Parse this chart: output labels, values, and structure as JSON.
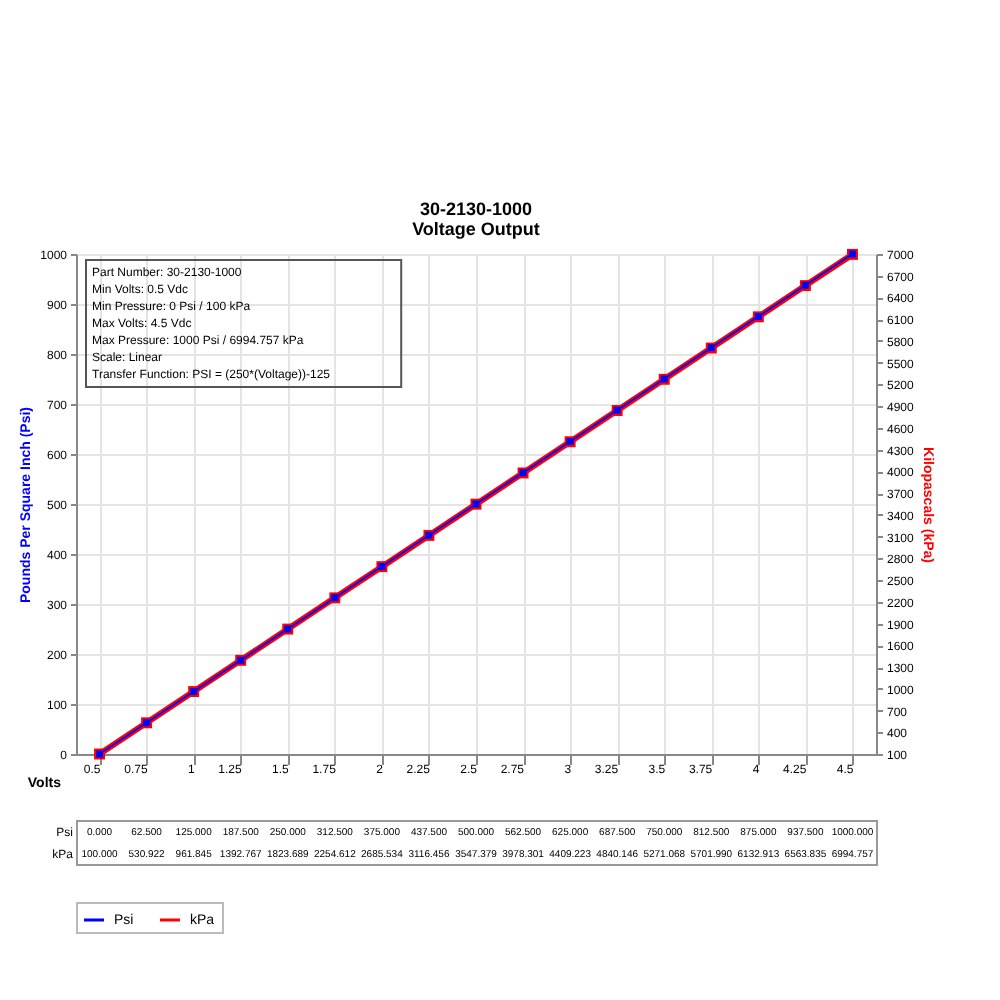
{
  "chart_data": {
    "type": "line",
    "title": "30-2130-1000",
    "subtitle": "Voltage Output",
    "xlabel": "Volts",
    "ylabel": "Pounds Per Square Inch (Psi)",
    "y2label": "Kilopascals (kPa)",
    "annotations": [
      "Part Number: 30-2130-1000",
      "Min Volts: 0.5 Vdc",
      "Min Pressure: 0 Psi / 100 kPa",
      "Max Volts: 4.5 Vdc",
      "Max Pressure: 1000 Psi / 6994.757 kPa",
      "Scale: Linear",
      "Transfer Function: PSI = (250*(Voltage))-125"
    ],
    "categories": [
      "0.5",
      "0.75",
      "1",
      "1.25",
      "1.5",
      "1.75",
      "2",
      "2.25",
      "2.5",
      "2.75",
      "3",
      "3.25",
      "3.5",
      "3.75",
      "4",
      "4.25",
      "4.5"
    ],
    "series": [
      {
        "name": "Psi",
        "color": "#0000ff",
        "values": [
          0,
          62.5,
          125,
          187.5,
          250,
          312.5,
          375,
          437.5,
          500,
          562.5,
          625,
          687.5,
          750,
          812.5,
          875,
          937.5,
          1000
        ],
        "value_labels": [
          "0.000",
          "62.500",
          "125.000",
          "187.500",
          "250.000",
          "312.500",
          "375.000",
          "437.500",
          "500.000",
          "562.500",
          "625.000",
          "687.500",
          "750.000",
          "812.500",
          "875.000",
          "937.500",
          "1000.000"
        ]
      },
      {
        "name": "kPa",
        "color": "#ff0000",
        "axis": "y2",
        "values": [
          100,
          530.922,
          961.845,
          1392.767,
          1823.689,
          2254.612,
          2685.534,
          3116.456,
          3547.379,
          3978.301,
          4409.223,
          4840.146,
          5271.068,
          5701.99,
          6132.913,
          6563.835,
          6994.757
        ],
        "value_labels": [
          "100.000",
          "530.922",
          "961.845",
          "1392.767",
          "1823.689",
          "2254.612",
          "2685.534",
          "3116.456",
          "3547.379",
          "3978.301",
          "4409.223",
          "4840.146",
          "5271.068",
          "5701.990",
          "6132.913",
          "6563.835",
          "6994.757"
        ]
      }
    ],
    "ylim": [
      0,
      1000
    ],
    "yticks": [
      0,
      100,
      200,
      300,
      400,
      500,
      600,
      700,
      800,
      900,
      1000
    ],
    "y2lim": [
      100,
      7000
    ],
    "y2ticks": [
      100,
      400,
      700,
      1000,
      1300,
      1600,
      1900,
      2200,
      2500,
      2800,
      3100,
      3400,
      3700,
      4000,
      4300,
      4600,
      4900,
      5200,
      5500,
      5800,
      6100,
      6400,
      6700,
      7000
    ],
    "grid": true,
    "legend": "bottom",
    "marker": "square",
    "line_style": "solid"
  }
}
